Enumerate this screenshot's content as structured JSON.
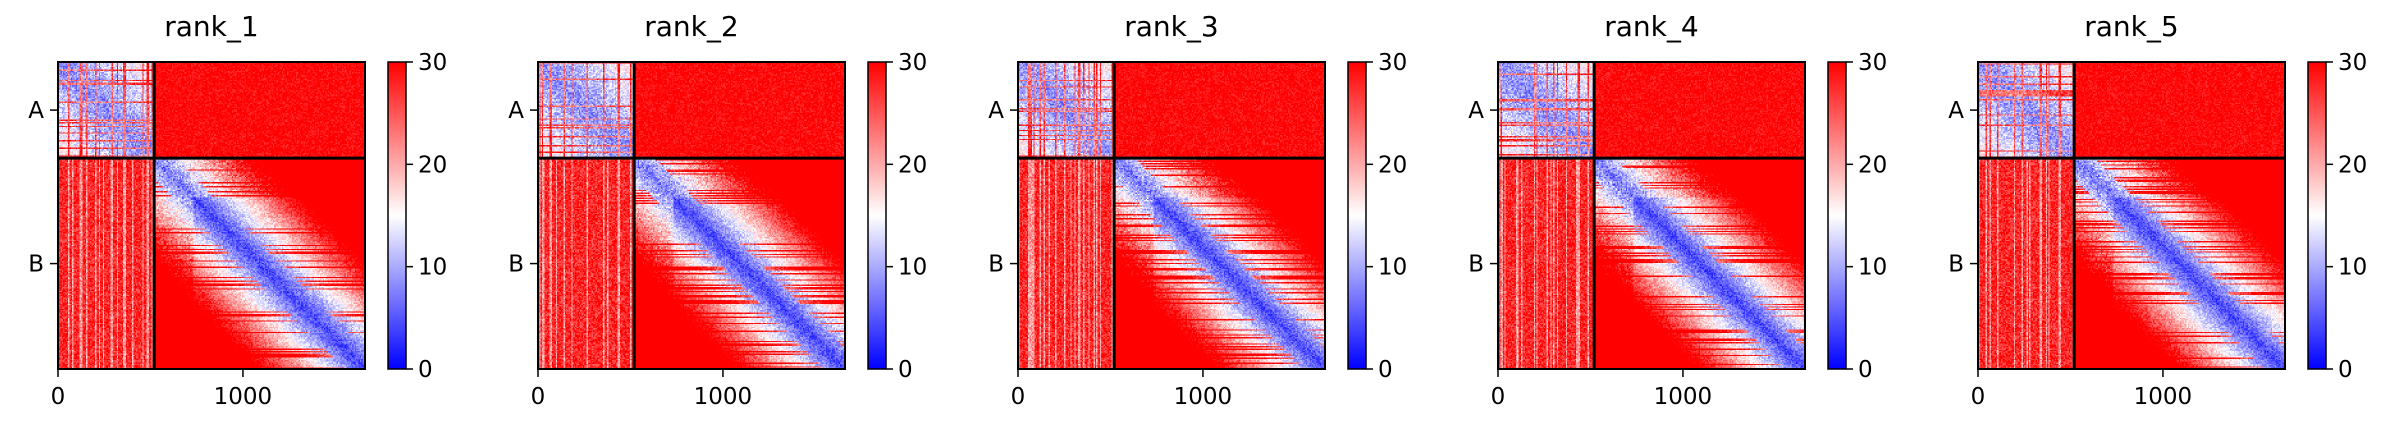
{
  "chart_data": {
    "type": "heatmap",
    "colormap": "bwr",
    "color_min": 0,
    "color_max": 30,
    "colorbar_ticks": [
      "0",
      "10",
      "20",
      "30"
    ],
    "x_ticks": [
      {
        "value": 0,
        "label": "0"
      },
      {
        "value": 1000,
        "label": "1000"
      }
    ],
    "x_range": [
      0,
      1660
    ],
    "chain_boundary": 520,
    "chains": [
      {
        "label": "A",
        "start": 0,
        "end": 520
      },
      {
        "label": "B",
        "start": 520,
        "end": 1660
      }
    ],
    "panels": [
      {
        "title": "rank_1"
      },
      {
        "title": "rank_2"
      },
      {
        "title": "rank_3"
      },
      {
        "title": "rank_4"
      },
      {
        "title": "rank_5"
      }
    ]
  }
}
